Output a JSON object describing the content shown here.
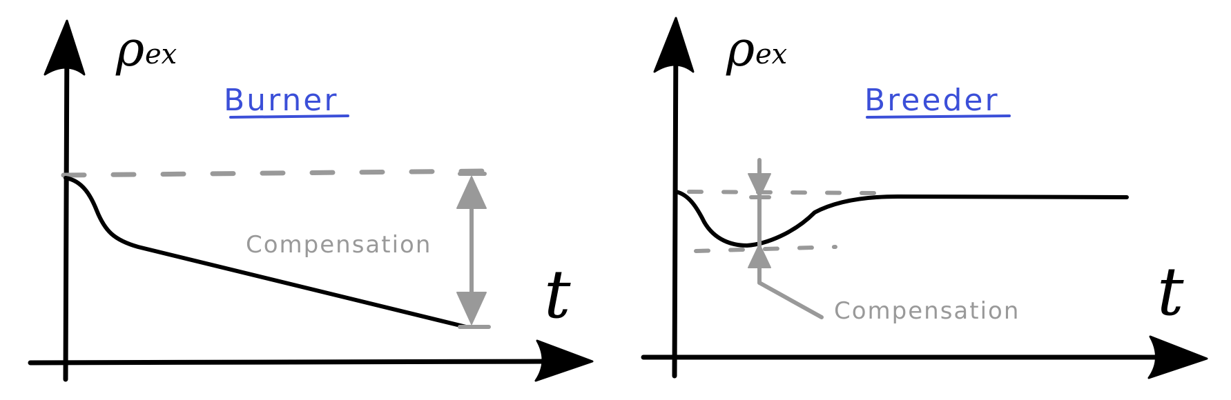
{
  "left_panel": {
    "title": "Burner",
    "y_axis_symbol": "ρ",
    "y_axis_subscript": "ex",
    "x_axis_symbol": "t",
    "compensation_label": "Compensation"
  },
  "right_panel": {
    "title": "Breeder",
    "y_axis_symbol": "ρ",
    "y_axis_subscript": "ex",
    "x_axis_symbol": "t",
    "compensation_label": "Compensation"
  },
  "colors": {
    "title_color": "#3b4fd8",
    "annotation_color": "#999999",
    "curve_color": "#000000"
  }
}
